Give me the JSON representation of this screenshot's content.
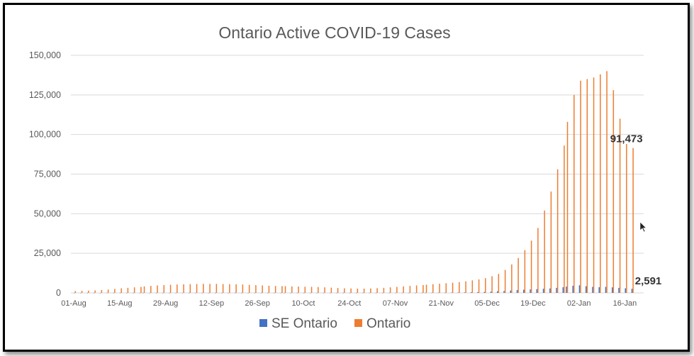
{
  "chart_data": {
    "type": "bar",
    "title": "Ontario Active COVID-19 Cases",
    "xlabel": "",
    "ylabel": "",
    "ylim": [
      0,
      150000
    ],
    "yticks": [
      "0",
      "25,000",
      "50,000",
      "75,000",
      "100,000",
      "125,000",
      "150,000"
    ],
    "yvalues": [
      0,
      25000,
      50000,
      75000,
      100000,
      125000,
      150000
    ],
    "xticks": [
      "01-Aug",
      "15-Aug",
      "29-Aug",
      "12-Sep",
      "26-Sep",
      "10-Oct",
      "24-Oct",
      "07-Nov",
      "21-Nov",
      "05-Dec",
      "19-Dec",
      "02-Jan",
      "16-Jan"
    ],
    "legend_position": "bottom",
    "grid": true,
    "series": [
      {
        "name": "SE Ontario",
        "color": "#4472C4",
        "values_every_2_days": [
          20,
          20,
          20,
          20,
          20,
          20,
          20,
          20,
          20,
          20,
          30,
          30,
          30,
          30,
          30,
          30,
          40,
          40,
          40,
          40,
          40,
          40,
          40,
          40,
          40,
          40,
          40,
          40,
          40,
          40,
          40,
          40,
          40,
          40,
          40,
          40,
          40,
          40,
          40,
          40,
          40,
          40,
          40,
          40,
          40,
          40,
          40,
          40,
          40,
          50,
          50,
          50,
          60,
          60,
          70,
          80,
          90,
          100,
          120,
          150,
          200,
          300,
          400,
          500,
          600,
          800,
          1000,
          1200,
          1500,
          1800,
          2000,
          2200,
          2400,
          2600,
          2800,
          3200,
          3600,
          4000,
          4500,
          4800,
          4200,
          3800,
          3600,
          3800,
          3500,
          3200,
          2900,
          2591
        ]
      },
      {
        "name": "Ontario",
        "color": "#ED7D31",
        "values_every_2_days": [
          1200,
          1300,
          1400,
          1600,
          1800,
          2100,
          2500,
          2900,
          3200,
          3500,
          3800,
          4100,
          4400,
          4700,
          4900,
          5100,
          5300,
          5400,
          5500,
          5600,
          5700,
          5700,
          5700,
          5600,
          5500,
          5400,
          5300,
          5100,
          4900,
          4700,
          4500,
          4400,
          4300,
          4200,
          4100,
          4000,
          3900,
          3800,
          3700,
          3500,
          3300,
          3100,
          2900,
          2800,
          2700,
          2700,
          2800,
          3000,
          3200,
          3500,
          3800,
          4100,
          4400,
          4700,
          4900,
          5200,
          5500,
          5800,
          6100,
          6400,
          6800,
          7300,
          7900,
          8500,
          9300,
          10500,
          12000,
          14500,
          18000,
          22000,
          27000,
          33000,
          41000,
          52000,
          64000,
          78000,
          93000,
          108000,
          125000,
          134000,
          135000,
          136000,
          138000,
          140000,
          128000,
          110000,
          94000,
          91473
        ]
      }
    ],
    "annotations": [
      {
        "series": "Ontario",
        "label": "91,473"
      },
      {
        "series": "SE Ontario",
        "label": "2,591"
      }
    ]
  }
}
